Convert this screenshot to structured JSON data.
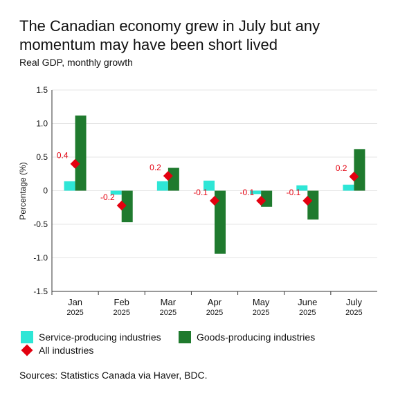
{
  "chart_data": {
    "type": "bar",
    "title": "The Canadian economy grew in July but any momentum may have been short lived",
    "subtitle": "Real GDP, monthly growth",
    "ylabel": "Percentage (%)",
    "ylim": [
      -1.5,
      1.5
    ],
    "yticks": [
      1.5,
      1.0,
      0.5,
      0,
      -0.5,
      -1.0,
      -1.5
    ],
    "ytick_labels": [
      "1.5",
      "1.0",
      "0.5",
      "0",
      "-0.5",
      "-1.0",
      "-1.5"
    ],
    "categories": [
      "Jan",
      "Feb",
      "Mar",
      "Apr",
      "May",
      "June",
      "July"
    ],
    "category_years": [
      "2025",
      "2025",
      "2025",
      "2025",
      "2025",
      "2025",
      "2025"
    ],
    "grid": true,
    "legend_position": "bottom",
    "series": [
      {
        "name": "Service-producing industries",
        "kind": "bar",
        "color": "#2ee6d6",
        "values": [
          0.14,
          -0.06,
          0.14,
          0.15,
          -0.05,
          0.08,
          0.09
        ]
      },
      {
        "name": "Goods-producing industries",
        "kind": "bar",
        "color": "#1f7a2e",
        "values": [
          1.12,
          -0.47,
          0.34,
          -0.94,
          -0.24,
          -0.43,
          0.62
        ]
      },
      {
        "name": "All industries",
        "kind": "marker",
        "color": "#e3000f",
        "values": [
          0.4,
          -0.22,
          0.22,
          -0.15,
          -0.15,
          -0.15,
          0.21
        ],
        "labels": [
          "0.4",
          "-0.2",
          "0.2",
          "-0.1",
          "-0.1",
          "-0.1",
          "0.2"
        ]
      }
    ]
  },
  "source": "Sources: Statistics Canada via Haver, BDC."
}
